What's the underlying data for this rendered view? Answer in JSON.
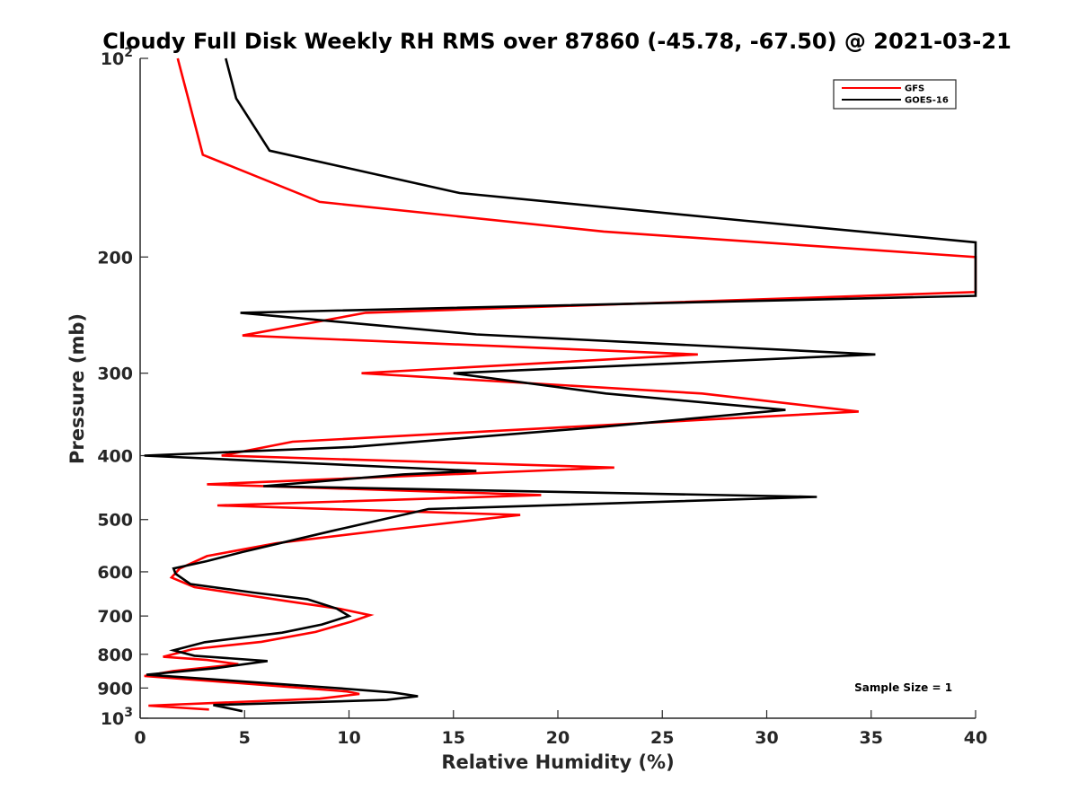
{
  "chart_data": {
    "type": "line",
    "title": "Cloudy Full Disk Weekly RH RMS over 87860 (-45.78, -67.50) @ 2021-03-21",
    "xlabel": "Relative Humidity (%)",
    "ylabel": "Pressure (mb)",
    "xlim": [
      0,
      40
    ],
    "ylim": [
      100,
      1000
    ],
    "y_scale": "log",
    "y_reversed": true,
    "grid": false,
    "legend_position": "top-right",
    "x_ticks": [
      "0",
      "5",
      "10",
      "15",
      "20",
      "25",
      "30",
      "35",
      "40"
    ],
    "y_ticks": [
      {
        "value": 100,
        "base": "10",
        "exp": "2"
      },
      {
        "value": 200,
        "label": "200"
      },
      {
        "value": 300,
        "label": "300"
      },
      {
        "value": 400,
        "label": "400"
      },
      {
        "value": 500,
        "label": "500"
      },
      {
        "value": 600,
        "label": "600"
      },
      {
        "value": 700,
        "label": "700"
      },
      {
        "value": 800,
        "label": "800"
      },
      {
        "value": 900,
        "label": "900"
      },
      {
        "value": 1000,
        "base": "10",
        "exp": "3"
      }
    ],
    "series": [
      {
        "name": "GFS",
        "color": "#ff0000",
        "points": [
          [
            1.8,
            100
          ],
          [
            2.3,
            115
          ],
          [
            3.0,
            140
          ],
          [
            8.6,
            165
          ],
          [
            22.2,
            183
          ],
          [
            40.0,
            200
          ],
          [
            40.0,
            226
          ],
          [
            10.8,
            243
          ],
          [
            4.9,
            263
          ],
          [
            26.7,
            281
          ],
          [
            10.6,
            300
          ],
          [
            26.9,
            322
          ],
          [
            34.4,
            343
          ],
          [
            7.3,
            381
          ],
          [
            3.9,
            400
          ],
          [
            22.7,
            417
          ],
          [
            3.2,
            442
          ],
          [
            19.2,
            459
          ],
          [
            3.7,
            476
          ],
          [
            18.2,
            492
          ],
          [
            11.9,
            518
          ],
          [
            6.5,
            543
          ],
          [
            3.2,
            568
          ],
          [
            1.9,
            593
          ],
          [
            1.5,
            612
          ],
          [
            2.6,
            633
          ],
          [
            5.0,
            650
          ],
          [
            7.1,
            665
          ],
          [
            9.6,
            683
          ],
          [
            11.0,
            698
          ],
          [
            10.1,
            714
          ],
          [
            8.4,
            740
          ],
          [
            5.8,
            766
          ],
          [
            2.5,
            786
          ],
          [
            1.1,
            807
          ],
          [
            3.2,
            816
          ],
          [
            4.7,
            828
          ],
          [
            1.6,
            848
          ],
          [
            0.2,
            863
          ],
          [
            4.6,
            884
          ],
          [
            9.9,
            911
          ],
          [
            10.5,
            919
          ],
          [
            8.6,
            934
          ],
          [
            0.4,
            957
          ],
          [
            3.3,
            970
          ]
        ]
      },
      {
        "name": "GOES-16",
        "color": "#000000",
        "points": [
          [
            4.1,
            100
          ],
          [
            4.6,
            115
          ],
          [
            6.2,
            138
          ],
          [
            15.3,
            160
          ],
          [
            28.8,
            176
          ],
          [
            40.0,
            190
          ],
          [
            40.0,
            229
          ],
          [
            4.8,
            243
          ],
          [
            16.1,
            262
          ],
          [
            35.2,
            281
          ],
          [
            15.0,
            300
          ],
          [
            22.3,
            322
          ],
          [
            30.9,
            341
          ],
          [
            22.0,
            362
          ],
          [
            10.2,
            388
          ],
          [
            0.2,
            400
          ],
          [
            16.1,
            422
          ],
          [
            12.6,
            427
          ],
          [
            5.9,
            445
          ],
          [
            32.4,
            462
          ],
          [
            13.8,
            482
          ],
          [
            9.2,
            520
          ],
          [
            4.9,
            560
          ],
          [
            3.2,
            578
          ],
          [
            1.6,
            593
          ],
          [
            1.7,
            604
          ],
          [
            2.4,
            626
          ],
          [
            5.4,
            645
          ],
          [
            8.0,
            660
          ],
          [
            9.4,
            682
          ],
          [
            10.0,
            700
          ],
          [
            8.7,
            721
          ],
          [
            6.8,
            742
          ],
          [
            3.1,
            767
          ],
          [
            1.6,
            789
          ],
          [
            2.6,
            804
          ],
          [
            6.1,
            819
          ],
          [
            3.6,
            840
          ],
          [
            0.3,
            859
          ],
          [
            9.4,
            900
          ],
          [
            12.1,
            914
          ],
          [
            13.3,
            926
          ],
          [
            11.8,
            938
          ],
          [
            3.5,
            955
          ],
          [
            4.9,
            976
          ]
        ]
      }
    ],
    "annotations": [
      {
        "text": "Sample Size = 1",
        "x": 34.2,
        "y": 911
      }
    ]
  }
}
